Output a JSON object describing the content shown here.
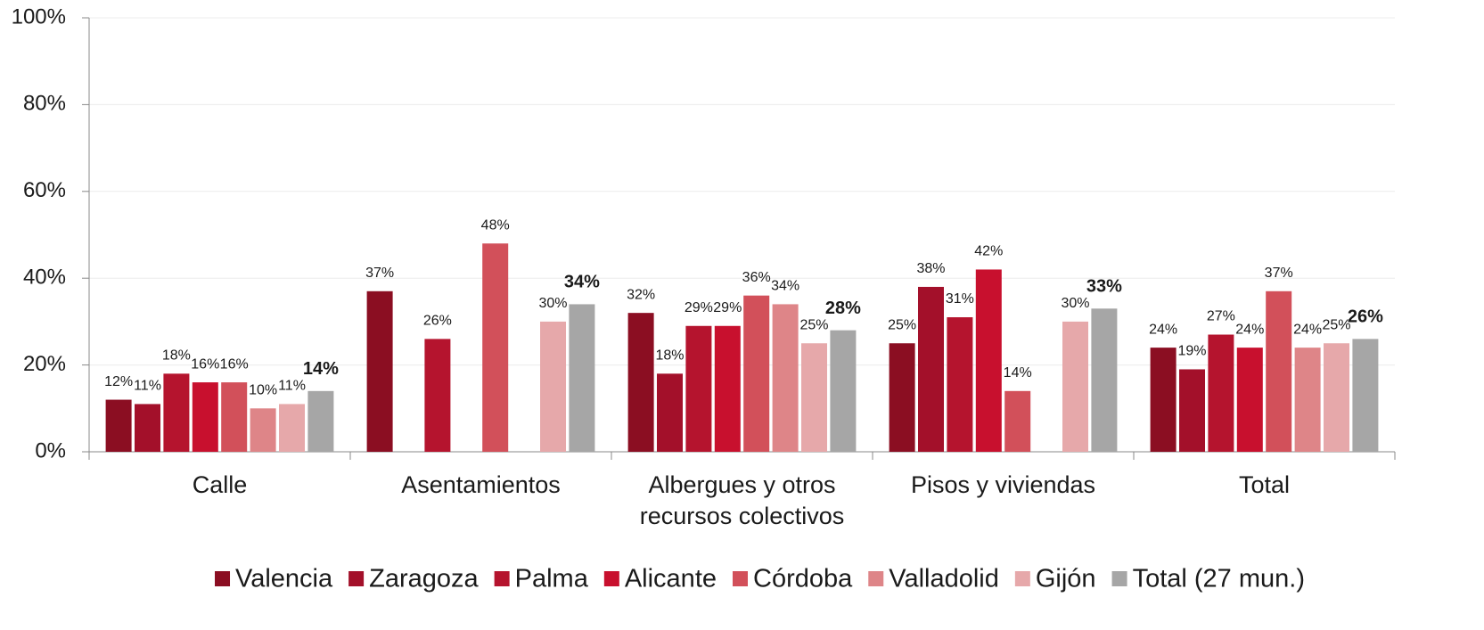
{
  "chart_data": {
    "type": "bar",
    "categories": [
      "Calle",
      "Asentamientos",
      "Albergues y otros recursos colectivos",
      "Pisos y viviendas",
      "Total"
    ],
    "series": [
      {
        "name": "Valencia",
        "color": "#8b0e22",
        "values": [
          12,
          37,
          32,
          25,
          24
        ],
        "value_labels": [
          "12%",
          "37%",
          "32%",
          "25%",
          "24%"
        ]
      },
      {
        "name": "Zaragoza",
        "color": "#a3102a",
        "values": [
          11,
          null,
          18,
          38,
          19
        ],
        "value_labels": [
          "11%",
          null,
          "18%",
          "38%",
          "19%"
        ]
      },
      {
        "name": "Palma",
        "color": "#b5142e",
        "values": [
          18,
          26,
          29,
          31,
          27
        ],
        "value_labels": [
          "18%",
          "26%",
          "29%",
          "31%",
          "27%"
        ]
      },
      {
        "name": "Alicante",
        "color": "#c8102e",
        "values": [
          16,
          null,
          29,
          42,
          24
        ],
        "value_labels": [
          "16%",
          null,
          "29%",
          "42%",
          "24%"
        ]
      },
      {
        "name": "Córdoba",
        "color": "#d2505a",
        "values": [
          16,
          48,
          36,
          14,
          37
        ],
        "value_labels": [
          "16%",
          "48%",
          "36%",
          "14%",
          "37%"
        ]
      },
      {
        "name": "Valladolid",
        "color": "#de8588",
        "values": [
          10,
          null,
          34,
          null,
          24
        ],
        "value_labels": [
          "10%",
          null,
          "34%",
          null,
          "24%"
        ]
      },
      {
        "name": "Gijón",
        "color": "#e6a8aa",
        "values": [
          11,
          30,
          25,
          30,
          25
        ],
        "value_labels": [
          "11%",
          "30%",
          "25%",
          "30%",
          "25%"
        ]
      },
      {
        "name": "Total (27 mun.)",
        "color": "#a6a6a6",
        "values": [
          14,
          34,
          28,
          33,
          26
        ],
        "value_labels": [
          "14%",
          "34%",
          "28%",
          "33%",
          "26%"
        ]
      }
    ],
    "ylim": [
      0,
      100
    ],
    "yticks": [
      {
        "value": 0,
        "label": "0%"
      },
      {
        "value": 20,
        "label": "20%"
      },
      {
        "value": 40,
        "label": "40%"
      },
      {
        "value": 60,
        "label": "60%"
      },
      {
        "value": 80,
        "label": "80%"
      },
      {
        "value": 100,
        "label": "100%"
      }
    ],
    "grid": true,
    "legend": "bottom"
  }
}
